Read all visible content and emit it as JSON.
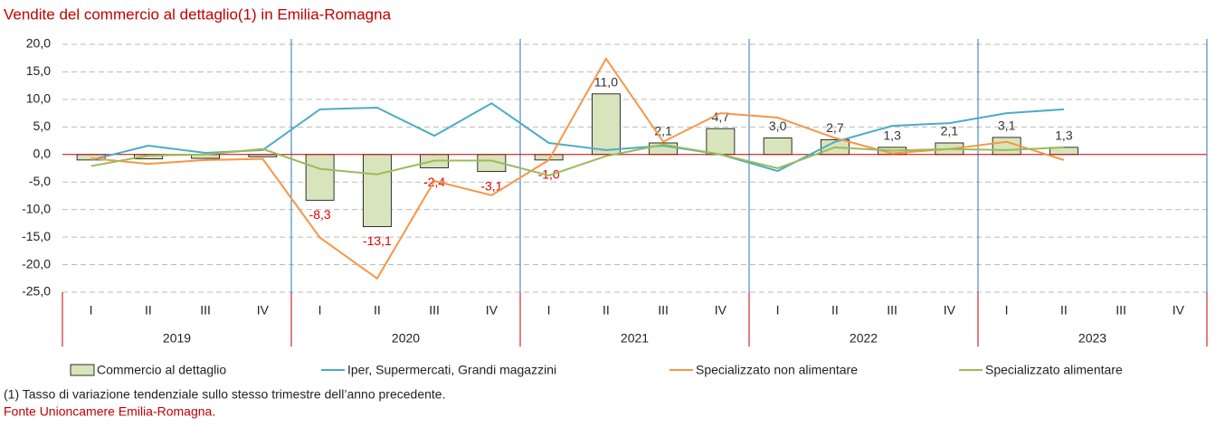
{
  "chart_data": {
    "type": "bar-line",
    "title": "Vendite del commercio al dettaglio(1) in Emilia-Romagna",
    "categories": [
      "I",
      "II",
      "III",
      "IV",
      "I",
      "II",
      "III",
      "IV",
      "I",
      "II",
      "III",
      "IV",
      "I",
      "II",
      "III",
      "IV",
      "I",
      "II",
      "III",
      "IV"
    ],
    "year_groups": [
      "2019",
      "2020",
      "2021",
      "2022",
      "2023"
    ],
    "ylim": [
      -25,
      20
    ],
    "yticks": [
      {
        "value": -25,
        "label": "-25,0"
      },
      {
        "value": -20,
        "label": "-20,0"
      },
      {
        "value": -15,
        "label": "-15,0"
      },
      {
        "value": -10,
        "label": "-10,0"
      },
      {
        "value": -5,
        "label": "-5,0"
      },
      {
        "value": 0,
        "label": "0,0"
      },
      {
        "value": 5,
        "label": "5,0"
      },
      {
        "value": 10,
        "label": "10,0"
      },
      {
        "value": 15,
        "label": "15,0"
      },
      {
        "value": 20,
        "label": "20,0"
      }
    ],
    "grid": true,
    "series": [
      {
        "name": "Commercio al dettaglio",
        "kind": "bar",
        "color": "#d8e4bc",
        "values": [
          -1.0,
          -0.8,
          -0.7,
          -0.4,
          -8.3,
          -13.1,
          -2.4,
          -3.1,
          -1.0,
          11.0,
          2.1,
          4.7,
          3.0,
          2.7,
          1.3,
          2.1,
          3.1,
          1.3,
          null,
          null
        ],
        "value_labels": [
          null,
          null,
          null,
          null,
          "-8,3",
          "-13,1",
          "-2,4",
          "-3,1",
          "-1,0",
          "11,0",
          "2,1",
          "4,7",
          "3,0",
          "2,7",
          "1,3",
          "2,1",
          "3,1",
          "1,3",
          null,
          null
        ]
      },
      {
        "name": "Iper, Supermercati, Grandi magazzini",
        "kind": "line",
        "color": "#4bacc6",
        "values": [
          -1.0,
          1.6,
          0.3,
          0.8,
          8.2,
          8.5,
          3.4,
          9.3,
          2.1,
          0.8,
          1.6,
          0.0,
          -3.0,
          2.3,
          5.2,
          5.7,
          7.5,
          8.2,
          null,
          null
        ]
      },
      {
        "name": "Specializzato non alimentare",
        "kind": "line",
        "color": "#f79646",
        "values": [
          -0.7,
          -1.7,
          -1.0,
          -0.8,
          -15.1,
          -22.5,
          -4.8,
          -7.4,
          -1.0,
          17.4,
          2.3,
          7.5,
          6.7,
          3.0,
          0.2,
          1.0,
          2.3,
          -1.0,
          null,
          null
        ]
      },
      {
        "name": "Specializzato alimentare",
        "kind": "line",
        "color": "#9bbb59",
        "values": [
          -2.1,
          -0.2,
          0.0,
          1.0,
          -2.6,
          -3.6,
          -1.1,
          -1.1,
          -3.8,
          -0.3,
          1.8,
          0.0,
          -2.5,
          1.3,
          0.7,
          1.0,
          0.8,
          1.3,
          null,
          null
        ]
      }
    ],
    "footnote": "(1) Tasso di variazione tendenziale sullo stesso trimestre dell’anno precedente.",
    "source": "Fonte Unioncamere Emilia-Romagna."
  }
}
